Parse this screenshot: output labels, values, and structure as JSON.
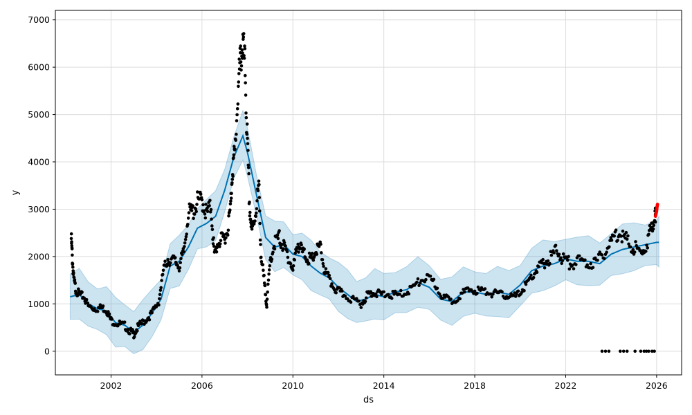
{
  "chart_data": {
    "type": "line",
    "xlabel": "ds",
    "ylabel": "y",
    "xlim": [
      1999.55,
      2027.1
    ],
    "ylim": [
      -500,
      7200
    ],
    "grid": true,
    "x_ticks": [
      2002,
      2006,
      2010,
      2014,
      2018,
      2022,
      2026
    ],
    "x_tick_labels": [
      "2002",
      "2006",
      "2010",
      "2014",
      "2018",
      "2022",
      "2026"
    ],
    "y_ticks": [
      0,
      1000,
      2000,
      3000,
      4000,
      5000,
      6000,
      7000
    ],
    "y_tick_labels": [
      "0",
      "1000",
      "2000",
      "3000",
      "4000",
      "5000",
      "6000",
      "7000"
    ],
    "colors": {
      "observed": "#000000",
      "forecast_line": "#0072B2",
      "uncertainty_band": "#0072B2",
      "future_points": "#ff0000"
    },
    "series": [
      {
        "kind": "observed",
        "points": [
          [
            2000.25,
            2380
          ],
          [
            2000.3,
            1950
          ],
          [
            2000.35,
            1550
          ],
          [
            2000.45,
            1300
          ],
          [
            2000.6,
            1200
          ],
          [
            2000.8,
            1150
          ],
          [
            2001.0,
            950
          ],
          [
            2001.3,
            900
          ],
          [
            2001.6,
            920
          ],
          [
            2001.8,
            870
          ],
          [
            2002.0,
            650
          ],
          [
            2002.3,
            580
          ],
          [
            2002.6,
            540
          ],
          [
            2002.85,
            420
          ],
          [
            2003.0,
            360
          ],
          [
            2003.2,
            520
          ],
          [
            2003.5,
            650
          ],
          [
            2003.8,
            800
          ],
          [
            2004.1,
            1050
          ],
          [
            2004.3,
            1700
          ],
          [
            2004.5,
            1950
          ],
          [
            2004.8,
            1900
          ],
          [
            2005.0,
            1800
          ],
          [
            2005.2,
            2100
          ],
          [
            2005.4,
            2900
          ],
          [
            2005.6,
            2950
          ],
          [
            2005.8,
            3150
          ],
          [
            2006.0,
            3200
          ],
          [
            2006.2,
            2900
          ],
          [
            2006.4,
            3050
          ],
          [
            2006.55,
            2000
          ],
          [
            2006.7,
            2300
          ],
          [
            2006.9,
            2350
          ],
          [
            2007.1,
            2500
          ],
          [
            2007.25,
            3000
          ],
          [
            2007.35,
            3900
          ],
          [
            2007.45,
            4200
          ],
          [
            2007.6,
            5600
          ],
          [
            2007.7,
            6200
          ],
          [
            2007.8,
            6500
          ],
          [
            2007.9,
            5900
          ],
          [
            2008.0,
            4300
          ],
          [
            2008.1,
            3000
          ],
          [
            2008.2,
            2500
          ],
          [
            2008.35,
            2900
          ],
          [
            2008.5,
            3500
          ],
          [
            2008.6,
            2000
          ],
          [
            2008.75,
            1400
          ],
          [
            2008.85,
            1000
          ],
          [
            2009.0,
            1900
          ],
          [
            2009.2,
            2300
          ],
          [
            2009.4,
            2400
          ],
          [
            2009.6,
            2200
          ],
          [
            2009.8,
            2000
          ],
          [
            2010.0,
            1700
          ],
          [
            2010.2,
            2300
          ],
          [
            2010.4,
            2100
          ],
          [
            2010.6,
            2000
          ],
          [
            2010.8,
            1900
          ],
          [
            2011.0,
            2100
          ],
          [
            2011.2,
            2200
          ],
          [
            2011.4,
            1700
          ],
          [
            2011.6,
            1500
          ],
          [
            2011.9,
            1300
          ],
          [
            2012.2,
            1200
          ],
          [
            2012.6,
            1100
          ],
          [
            2013.0,
            1000
          ],
          [
            2013.3,
            1200
          ],
          [
            2013.5,
            1250
          ],
          [
            2013.8,
            1200
          ],
          [
            2014.2,
            1200
          ],
          [
            2014.6,
            1180
          ],
          [
            2015.0,
            1250
          ],
          [
            2015.4,
            1400
          ],
          [
            2015.8,
            1550
          ],
          [
            2016.2,
            1450
          ],
          [
            2016.6,
            1150
          ],
          [
            2017.0,
            1050
          ],
          [
            2017.4,
            1200
          ],
          [
            2017.8,
            1300
          ],
          [
            2018.2,
            1280
          ],
          [
            2018.6,
            1250
          ],
          [
            2019.0,
            1200
          ],
          [
            2019.4,
            1180
          ],
          [
            2019.8,
            1150
          ],
          [
            2020.1,
            1300
          ],
          [
            2020.4,
            1500
          ],
          [
            2020.7,
            1700
          ],
          [
            2021.0,
            1850
          ],
          [
            2021.3,
            1950
          ],
          [
            2021.6,
            2150
          ],
          [
            2021.9,
            1950
          ],
          [
            2022.2,
            1850
          ],
          [
            2022.6,
            1900
          ],
          [
            2023.0,
            1850
          ],
          [
            2023.4,
            1900
          ],
          [
            2023.8,
            2150
          ],
          [
            2024.1,
            2400
          ],
          [
            2024.4,
            2550
          ],
          [
            2024.7,
            2300
          ],
          [
            2025.0,
            2200
          ],
          [
            2025.3,
            2050
          ],
          [
            2025.6,
            2300
          ],
          [
            2025.8,
            2700
          ],
          [
            2025.95,
            2850
          ]
        ]
      },
      {
        "kind": "observed-zero",
        "points": [
          [
            2023.6,
            0
          ],
          [
            2023.75,
            0
          ],
          [
            2023.9,
            0
          ],
          [
            2024.4,
            0
          ],
          [
            2024.55,
            0
          ],
          [
            2024.7,
            0
          ],
          [
            2025.05,
            0
          ],
          [
            2025.3,
            0
          ],
          [
            2025.45,
            0
          ],
          [
            2025.55,
            0
          ],
          [
            2025.65,
            0
          ],
          [
            2025.8,
            0
          ],
          [
            2025.9,
            0
          ]
        ]
      },
      {
        "kind": "future",
        "points": [
          [
            2025.95,
            2850
          ],
          [
            2026.0,
            2950
          ],
          [
            2026.02,
            3050
          ],
          [
            2026.04,
            3100
          ]
        ]
      },
      {
        "kind": "forecast",
        "x": [
          2000.2,
          2000.6,
          2001.0,
          2001.4,
          2001.8,
          2002.2,
          2002.6,
          2003.0,
          2003.4,
          2003.8,
          2004.2,
          2004.6,
          2005.0,
          2005.4,
          2005.8,
          2006.2,
          2006.6,
          2007.0,
          2007.4,
          2007.8,
          2008.0,
          2008.4,
          2008.8,
          2009.2,
          2009.6,
          2010.0,
          2010.4,
          2010.8,
          2011.2,
          2011.6,
          2012.0,
          2012.4,
          2012.8,
          2013.2,
          2013.6,
          2014.0,
          2014.5,
          2015.0,
          2015.5,
          2016.0,
          2016.5,
          2017.0,
          2017.5,
          2018.0,
          2018.5,
          2019.0,
          2019.5,
          2020.0,
          2020.5,
          2021.0,
          2021.5,
          2022.0,
          2022.5,
          2023.0,
          2023.5,
          2024.0,
          2024.5,
          2025.0,
          2025.5,
          2026.0,
          2026.1
        ],
        "yhat": [
          1150,
          1200,
          1000,
          900,
          850,
          600,
          550,
          400,
          550,
          800,
          1100,
          1800,
          1900,
          2200,
          2600,
          2700,
          2850,
          3400,
          4100,
          4550,
          4200,
          3300,
          2400,
          2200,
          2250,
          2050,
          2000,
          1800,
          1650,
          1550,
          1350,
          1200,
          1050,
          1100,
          1200,
          1150,
          1250,
          1300,
          1450,
          1350,
          1100,
          1050,
          1250,
          1250,
          1200,
          1250,
          1200,
          1400,
          1700,
          1800,
          1850,
          1950,
          1900,
          1900,
          1850,
          2050,
          2150,
          2200,
          2250,
          2300,
          2300
        ],
        "band_halfwidth": 480
      }
    ]
  }
}
